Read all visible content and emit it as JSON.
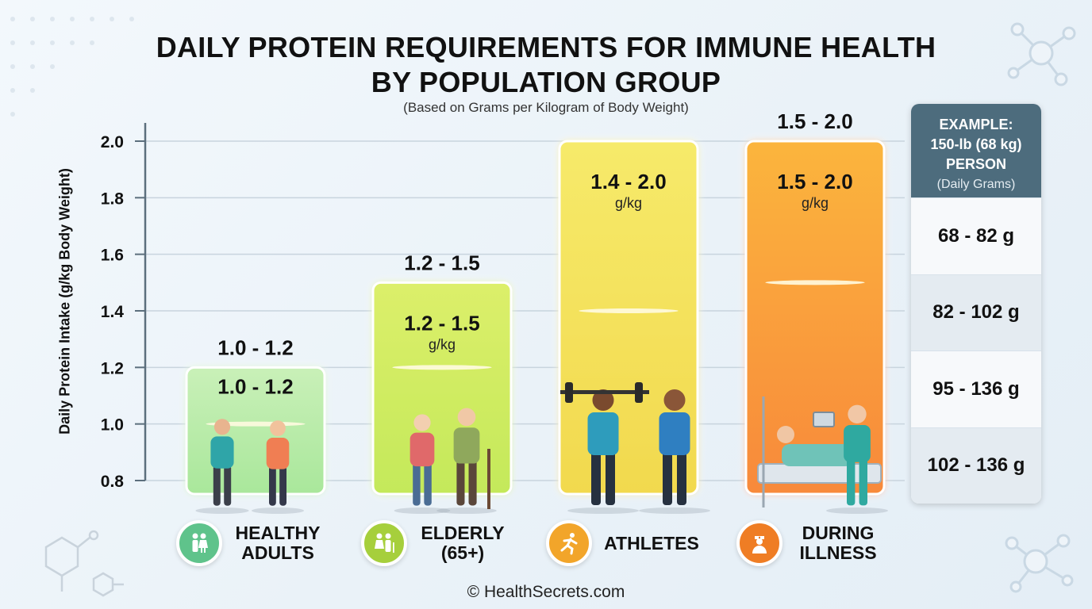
{
  "title_line1": "DAILY PROTEIN REQUIREMENTS FOR IMMUNE HEALTH",
  "title_line2": "BY POPULATION GROUP",
  "subtitle": "(Based on Grams per Kilogram of Body Weight)",
  "chart_data": {
    "type": "bar",
    "ylabel": "Daily Protein Intake (g/kg Body Weight)",
    "ylim": [
      0.8,
      2.0
    ],
    "yticks": [
      "0.8",
      "1.0",
      "1.2",
      "1.4",
      "1.6",
      "1.8",
      "2.0"
    ],
    "grid": true,
    "unit": "g/kg",
    "categories": [
      {
        "line1": "HEALTHY",
        "line2": "ADULTS",
        "low": 1.0,
        "high": 1.2,
        "top_label": "1.0 - 1.2",
        "inner_label": "1.0 - 1.2",
        "inner_unit": "",
        "color_top": "#c9f0b8",
        "color_bottom": "#a9e79b",
        "icon_color": "#5fc38b"
      },
      {
        "line1": "ELDERLY",
        "line2": "(65+)",
        "low": 1.2,
        "high": 1.5,
        "top_label": "1.2 - 1.5",
        "inner_label": "1.2 - 1.5",
        "inner_unit": "g/kg",
        "color_top": "#dcef6a",
        "color_bottom": "#c4e95a",
        "icon_color": "#a6cf3c"
      },
      {
        "line1": "ATHLETES",
        "line2": "",
        "low": 1.4,
        "high": 2.0,
        "top_label": "",
        "inner_label": "1.4 - 2.0",
        "inner_unit": "g/kg",
        "color_top": "#f6ea6a",
        "color_bottom": "#f2d94e",
        "icon_color": "#f2a52a"
      },
      {
        "line1": "DURING",
        "line2": "ILLNESS",
        "low": 1.5,
        "high": 2.0,
        "top_label": "1.5 - 2.0",
        "inner_label": "1.5 - 2.0",
        "inner_unit": "g/kg",
        "color_top": "#fbb53e",
        "color_bottom": "#f8893a",
        "icon_color": "#ef7d24"
      }
    ]
  },
  "example_table": {
    "head_line1": "EXAMPLE:",
    "head_line2": "150-lb (68 kg)",
    "head_line3": "PERSON",
    "head_note": "(Daily Grams)",
    "rows": [
      "68 - 82 g",
      "82 - 102 g",
      "95 - 136 g",
      "102 - 136 g"
    ]
  },
  "credit": "© HealthSecrets.com"
}
